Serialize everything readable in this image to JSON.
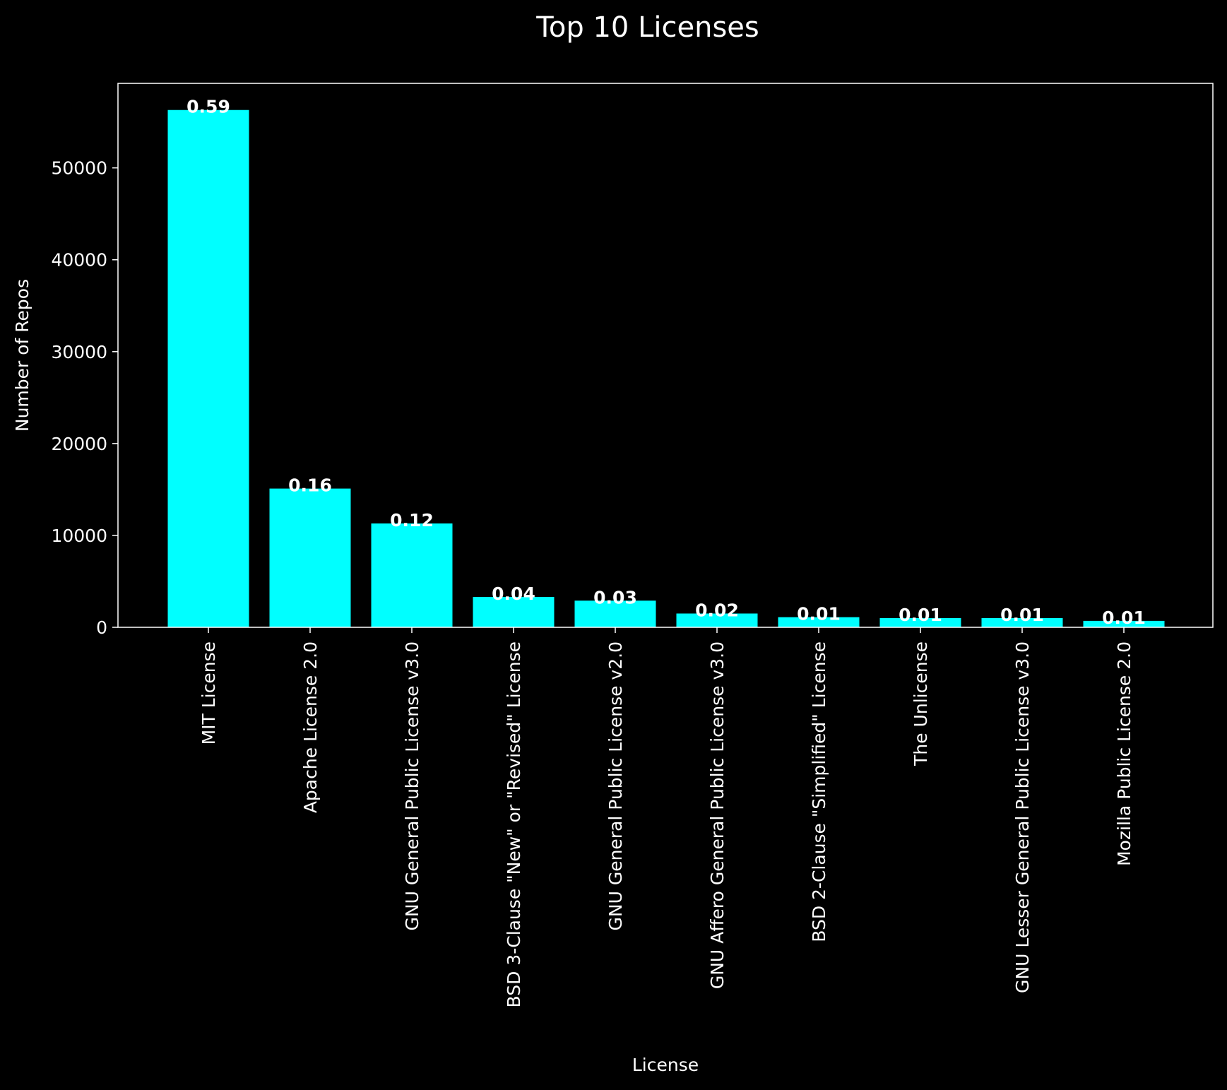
{
  "chart_data": {
    "type": "bar",
    "title": "Top 10 Licenses",
    "xlabel": "License",
    "ylabel": "Number of Repos",
    "categories": [
      "MIT License",
      "Apache License 2.0",
      "GNU General Public License v3.0",
      "BSD 3-Clause \"New\" or \"Revised\" License",
      "GNU General Public License v2.0",
      "GNU Affero General Public License v3.0",
      "BSD 2-Clause \"Simplified\" License",
      "The Unlicense",
      "GNU Lesser General Public License v3.0",
      "Mozilla Public License 2.0"
    ],
    "values": [
      56300,
      15100,
      11300,
      3300,
      2900,
      1500,
      1100,
      1000,
      1000,
      700
    ],
    "bar_labels": [
      "0.59",
      "0.16",
      "0.12",
      "0.04",
      "0.03",
      "0.02",
      "0.01",
      "0.01",
      "0.01",
      "0.01"
    ],
    "yticks": [
      0,
      10000,
      20000,
      30000,
      40000,
      50000
    ],
    "ylim": [
      0,
      59200
    ],
    "grid": false,
    "colors": {
      "background": "#000000",
      "bar": "#00ffff",
      "text": "#ffffff",
      "axes": "#ffffff"
    }
  }
}
